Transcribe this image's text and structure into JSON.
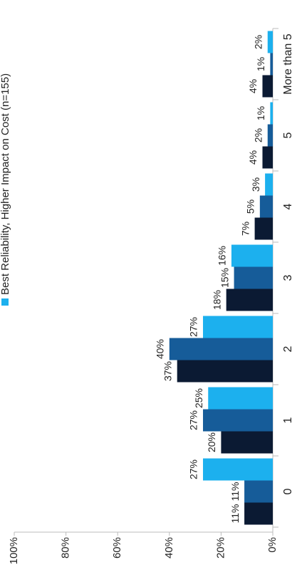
{
  "chart_data": {
    "type": "bar",
    "categories": [
      "0",
      "1",
      "2",
      "3",
      "4",
      "5",
      "More than 5"
    ],
    "series": [
      {
        "color": "#0b1a33",
        "values": [
          11,
          20,
          37,
          18,
          7,
          4,
          4
        ],
        "value_labels": [
          "11%",
          "20%",
          "37%",
          "18%",
          "7%",
          "4%",
          "4%"
        ]
      },
      {
        "color": "#165c99",
        "values": [
          11,
          27,
          40,
          15,
          5,
          2,
          1
        ],
        "value_labels": [
          "11%",
          "27%",
          "40%",
          "15%",
          "5%",
          "2%",
          "1%"
        ]
      },
      {
        "name": "Best Reliability, Higher Impact on Cost (n=155)",
        "color": "#1cb0ee",
        "values": [
          27,
          25,
          27,
          16,
          3,
          1,
          2
        ],
        "value_labels": [
          "27%",
          "25%",
          "27%",
          "16%",
          "3%",
          "1%",
          "2%"
        ]
      }
    ],
    "ylim": [
      0,
      100
    ],
    "yticks": [
      {
        "value": 0,
        "label": "0%"
      },
      {
        "value": 20,
        "label": "20%"
      },
      {
        "value": 40,
        "label": "40%"
      },
      {
        "value": 60,
        "label": "60%"
      },
      {
        "value": 80,
        "label": "80%"
      },
      {
        "value": 100,
        "label": "100%"
      }
    ],
    "grid": false,
    "legend": "top"
  }
}
